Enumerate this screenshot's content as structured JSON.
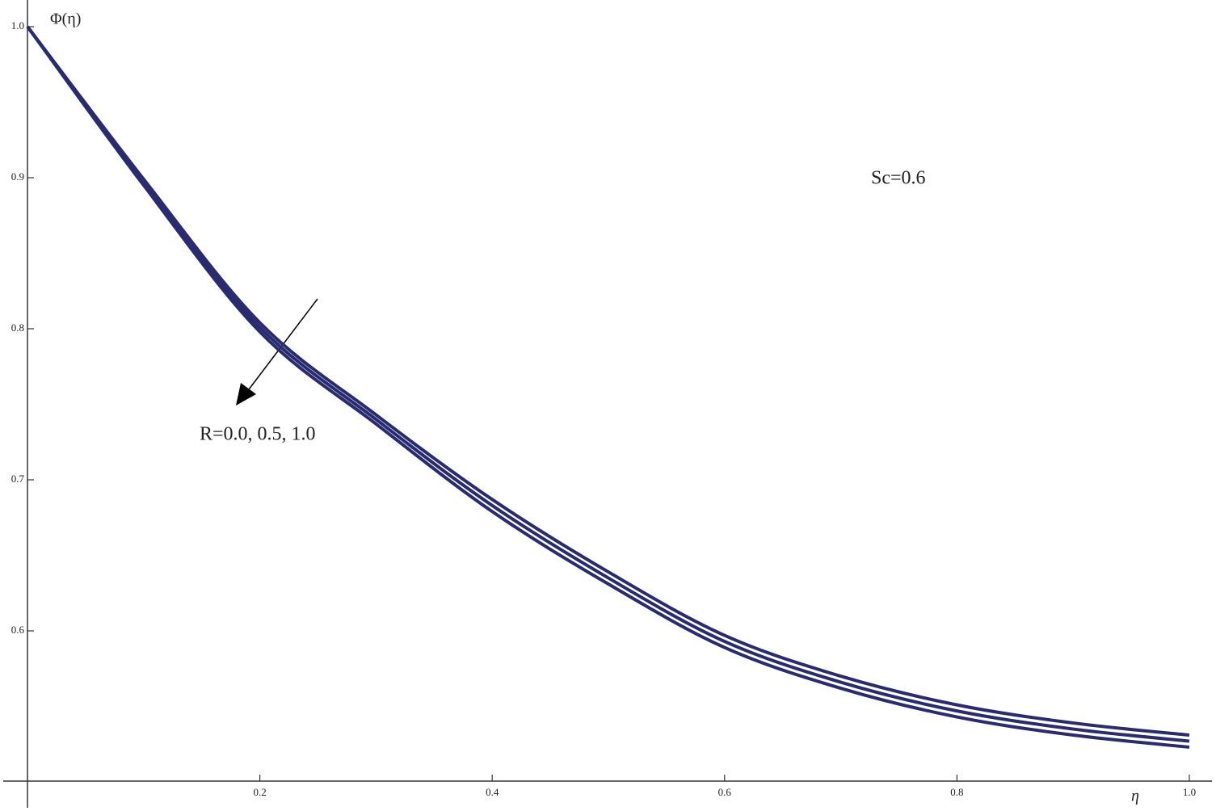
{
  "chart_data": {
    "type": "line",
    "x_label": "η",
    "y_label": "Φ(η)",
    "annotations": [
      "Sc=0.6",
      "R=0.0, 0.5, 1.0"
    ],
    "x": [
      0,
      0.1,
      0.2,
      0.3,
      0.4,
      0.5,
      0.6,
      0.7,
      0.8,
      0.9,
      1
    ],
    "series": [
      {
        "color": "#2a2a70",
        "values": [
          1.0,
          0.899,
          0.804,
          0.743,
          0.687,
          0.639,
          0.597,
          0.57,
          0.551,
          0.539,
          0.531
        ]
      },
      {
        "color": "#2a2a70",
        "values": [
          1.0,
          0.897,
          0.801,
          0.74,
          0.683,
          0.635,
          0.593,
          0.566,
          0.547,
          0.535,
          0.527
        ]
      },
      {
        "color": "#2a2a70",
        "values": [
          1.0,
          0.895,
          0.798,
          0.737,
          0.679,
          0.631,
          0.589,
          0.562,
          0.543,
          0.531,
          0.523
        ]
      }
    ],
    "xlim": [
      0,
      1
    ],
    "ylim": [
      0.5,
      1
    ],
    "xticks": [
      0.2,
      0.4,
      0.6,
      0.8,
      {
        "value": 1,
        "label": "1.0"
      }
    ],
    "yticks": [
      0.6,
      0.7,
      0.8,
      0.9,
      {
        "value": 1,
        "label": "1.0"
      }
    ]
  }
}
